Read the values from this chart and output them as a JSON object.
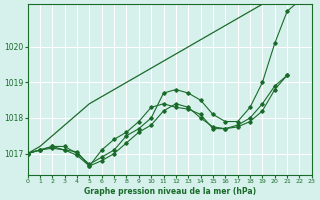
{
  "bg_color": "#d6f0ec",
  "grid_color": "#ffffff",
  "line_color": "#1a6b2a",
  "marker_color": "#1a6b2a",
  "xlabel": "Graphe pression niveau de la mer (hPa)",
  "xlabel_color": "#1a6b2a",
  "title": "",
  "xlim": [
    0,
    23
  ],
  "ylim": [
    1016.4,
    1021.2
  ],
  "yticks": [
    1017,
    1018,
    1019,
    1020
  ],
  "xticks": [
    0,
    1,
    2,
    3,
    4,
    5,
    6,
    7,
    8,
    9,
    10,
    11,
    12,
    13,
    14,
    15,
    16,
    17,
    18,
    19,
    20,
    21,
    22,
    23
  ],
  "series": [
    [
      1017.0,
      1017.1,
      1017.2,
      1017.2,
      1017.0,
      1016.7,
      1016.9,
      1017.1,
      1017.5,
      1017.7,
      1018.0,
      1018.7,
      1018.8,
      1018.7,
      1018.5,
      1018.1,
      1017.9,
      1017.9,
      1018.3,
      1019.0,
      1020.1,
      1021.0,
      1021.3
    ],
    [
      1017.0,
      1017.1,
      1017.15,
      1017.1,
      1016.95,
      1016.65,
      1017.1,
      1017.4,
      1017.6,
      1017.9,
      1018.3,
      1018.4,
      1018.3,
      1018.25,
      1018.1,
      1017.7,
      1017.7,
      1017.8,
      1018.0,
      1018.4,
      1018.9,
      1019.2
    ],
    [
      1017.0,
      1017.1,
      1017.2,
      1017.1,
      1017.05,
      1016.65,
      1016.8,
      1017.0,
      1017.3,
      1017.6,
      1017.8,
      1018.2,
      1018.4,
      1018.3,
      1018.0,
      1017.75,
      1017.7,
      1017.75,
      1017.9,
      1018.2,
      1018.8,
      1019.2
    ],
    [
      1017.0,
      1017.2,
      1017.5,
      1017.8,
      1018.1,
      1018.4,
      1018.6,
      1018.8,
      1019.0,
      1019.2,
      1019.4,
      1019.6,
      1019.8,
      1020.0,
      1020.2,
      1020.4,
      1020.6,
      1020.8,
      1021.0,
      1021.2,
      1021.4,
      1021.6,
      1021.8
    ]
  ]
}
